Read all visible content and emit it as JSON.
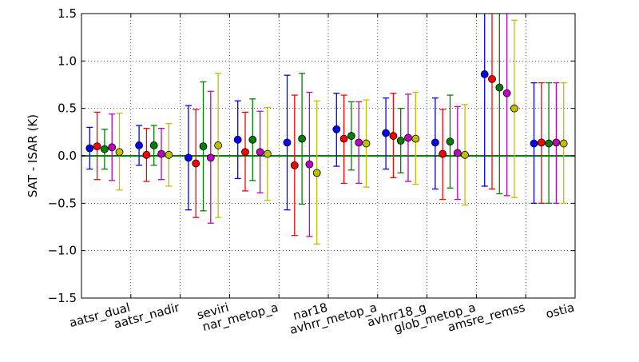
{
  "chart_data": {
    "type": "errorbar",
    "title": "",
    "xlabel": "",
    "ylabel": "SAT - ISAR (K)",
    "ylim": [
      -1.5,
      1.5
    ],
    "yticks": [
      "1.5",
      "1.0",
      "0.5",
      "0.0",
      "−0.5",
      "−1.0",
      "−1.5"
    ],
    "ytick_values": [
      1.5,
      1.0,
      0.5,
      0.0,
      -0.5,
      -1.0,
      -1.5
    ],
    "grid": true,
    "zero_line_color": "#008000",
    "categories": [
      "aatsr_dual",
      "aatsr_nadir",
      "seviri",
      "nar_metop_a",
      "nar18",
      "avhrr_metop_a",
      "avhrr18_g",
      "glob_metop_a",
      "amsre_remss",
      "ostia"
    ],
    "series": [
      {
        "color": "#0000ff",
        "values": [
          0.08,
          0.11,
          -0.02,
          0.17,
          0.14,
          0.28,
          0.24,
          0.14,
          0.86,
          0.13
        ],
        "lower": [
          -0.14,
          -0.1,
          -0.57,
          -0.24,
          -0.57,
          -0.11,
          -0.14,
          -0.35,
          -0.32,
          -0.5
        ],
        "upper": [
          0.3,
          0.32,
          0.53,
          0.58,
          0.85,
          0.66,
          0.61,
          0.61,
          1.55,
          0.77
        ]
      },
      {
        "color": "#ff0000",
        "values": [
          0.1,
          0.01,
          -0.08,
          0.04,
          -0.1,
          0.18,
          0.21,
          0.02,
          0.81,
          0.14
        ],
        "lower": [
          -0.25,
          -0.27,
          -0.65,
          -0.37,
          -0.84,
          -0.29,
          -0.23,
          -0.46,
          -0.35,
          -0.5
        ],
        "upper": [
          0.46,
          0.29,
          0.49,
          0.46,
          0.64,
          0.64,
          0.66,
          0.49,
          1.55,
          0.77
        ]
      },
      {
        "color": "#008000",
        "values": [
          0.07,
          0.11,
          0.1,
          0.17,
          0.18,
          0.21,
          0.16,
          0.15,
          0.72,
          0.13
        ],
        "lower": [
          -0.14,
          -0.1,
          -0.58,
          -0.26,
          -0.51,
          -0.15,
          -0.18,
          -0.34,
          -0.4,
          -0.5
        ],
        "upper": [
          0.28,
          0.32,
          0.78,
          0.6,
          0.87,
          0.57,
          0.5,
          0.64,
          1.55,
          0.77
        ]
      },
      {
        "color": "#bf00bf",
        "values": [
          0.09,
          0.02,
          -0.02,
          0.04,
          -0.09,
          0.14,
          0.19,
          0.03,
          0.66,
          0.14
        ],
        "lower": [
          -0.26,
          -0.25,
          -0.71,
          -0.39,
          -0.85,
          -0.29,
          -0.27,
          -0.46,
          -0.42,
          -0.5
        ],
        "upper": [
          0.44,
          0.29,
          0.68,
          0.47,
          0.67,
          0.57,
          0.65,
          0.52,
          1.55,
          0.77
        ]
      },
      {
        "color": "#bfbf00",
        "values": [
          0.04,
          0.01,
          0.11,
          0.02,
          -0.18,
          0.13,
          0.18,
          0.01,
          0.5,
          0.13
        ],
        "lower": [
          -0.36,
          -0.32,
          -0.65,
          -0.47,
          -0.93,
          -0.33,
          -0.3,
          -0.52,
          -0.44,
          -0.5
        ],
        "upper": [
          0.45,
          0.34,
          0.87,
          0.51,
          0.58,
          0.59,
          0.67,
          0.54,
          1.43,
          0.77
        ]
      }
    ]
  }
}
